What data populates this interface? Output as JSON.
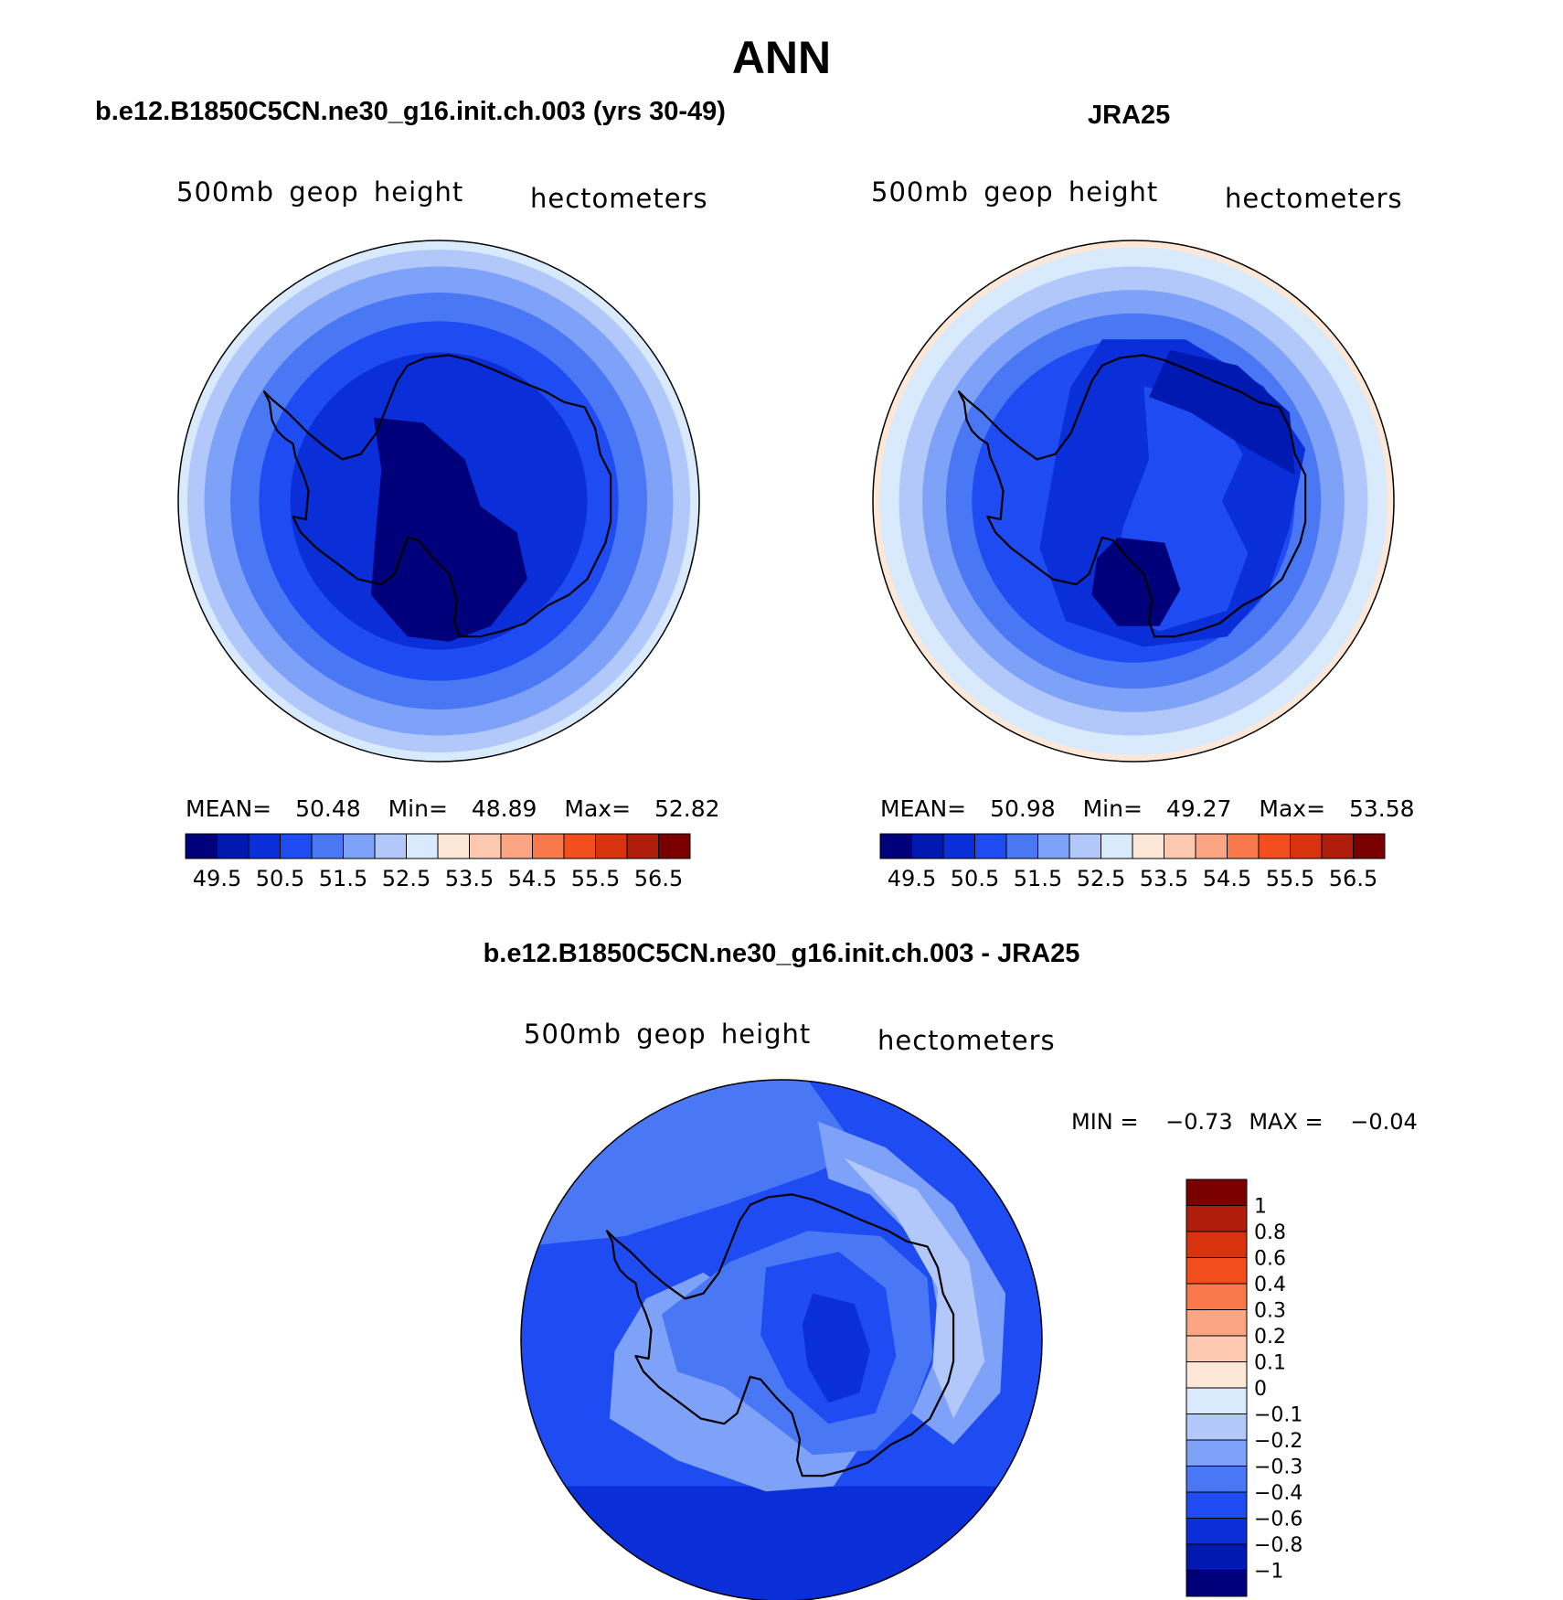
{
  "title": "ANN",
  "colors": {
    "abs_palette": [
      "#00007a",
      "#0019b0",
      "#0a2fd8",
      "#1e4cf2",
      "#4a78f5",
      "#7ea2f8",
      "#b2c8fb",
      "#d9eafc",
      "#fde7d7",
      "#fcc9b0",
      "#fba583",
      "#f9794c",
      "#f24e1e",
      "#d8320f",
      "#b01d0a",
      "#7a0000"
    ],
    "diff_palette": [
      "#00007a",
      "#0019b0",
      "#0a2fd8",
      "#1e4cf2",
      "#4a78f5",
      "#7ea2f8",
      "#b2c8fb",
      "#d9eafc",
      "#fde7d7",
      "#fcc9b0",
      "#fba583",
      "#f9794c",
      "#f24e1e",
      "#d8320f",
      "#b01d0a",
      "#7a0000"
    ]
  },
  "panels": [
    {
      "id": "model",
      "title": "b.e12.B1850C5CN.ne30_g16.init.ch.003 (yrs 30-49)",
      "variable": "500mb geop height",
      "units": "hectometers",
      "stats": {
        "mean_label": "MEAN=",
        "mean": "50.48",
        "min_label": "Min=",
        "min": "48.89",
        "max_label": "Max=",
        "max": "52.82"
      },
      "colorbar_labels": [
        "49.5",
        "50.5",
        "51.5",
        "52.5",
        "53.5",
        "54.5",
        "55.5",
        "56.5"
      ],
      "rings": [
        {
          "r_frac": 1.0,
          "level": 7
        },
        {
          "r_frac": 0.965,
          "level": 6
        },
        {
          "r_frac": 0.9,
          "level": 5
        },
        {
          "r_frac": 0.8,
          "level": 4
        },
        {
          "r_frac": 0.69,
          "level": 3
        },
        {
          "r_frac": 0.57,
          "level": 2
        }
      ]
    },
    {
      "id": "obs",
      "title": "JRA25",
      "variable": "500mb geop height",
      "units": "hectometers",
      "stats": {
        "mean_label": "MEAN=",
        "mean": "50.98",
        "min_label": "Min=",
        "min": "49.27",
        "max_label": "Max=",
        "max": "53.58"
      },
      "colorbar_labels": [
        "49.5",
        "50.5",
        "51.5",
        "52.5",
        "53.5",
        "54.5",
        "55.5",
        "56.5"
      ],
      "rings": [
        {
          "r_frac": 1.0,
          "level": 8
        },
        {
          "r_frac": 0.975,
          "level": 7
        },
        {
          "r_frac": 0.9,
          "level": 6
        },
        {
          "r_frac": 0.81,
          "level": 5
        },
        {
          "r_frac": 0.72,
          "level": 4
        },
        {
          "r_frac": 0.62,
          "level": 3
        }
      ]
    },
    {
      "id": "diff",
      "title": "b.e12.B1850C5CN.ne30_g16.init.ch.003 - JRA25",
      "variable": "500mb geop height",
      "units": "hectometers",
      "stats": {
        "min_label": "MIN =",
        "min": "−0.73",
        "max_label": "MAX =",
        "max": "−0.04"
      },
      "colorbar_labels": [
        "1",
        "0.8",
        "0.6",
        "0.4",
        "0.3",
        "0.2",
        "0.1",
        "0",
        "−0.1",
        "−0.2",
        "−0.3",
        "−0.4",
        "−0.6",
        "−0.8",
        "−1"
      ]
    }
  ]
}
